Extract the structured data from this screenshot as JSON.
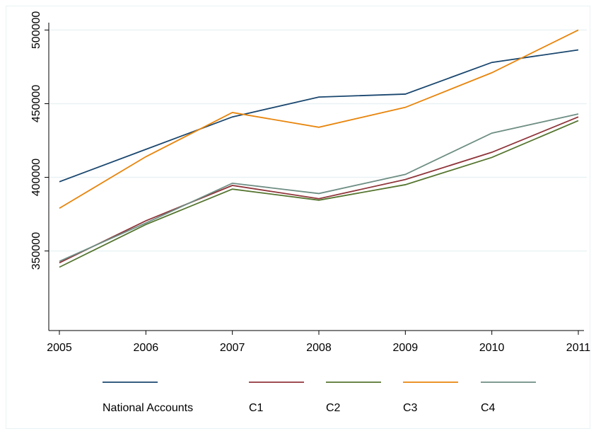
{
  "chart_data": {
    "type": "line",
    "categories": [
      2005,
      2006,
      2007,
      2008,
      2009,
      2010,
      2011
    ],
    "series": [
      {
        "name": "National Accounts",
        "color": "#1a476f",
        "values": [
          397000,
          419000,
          441000,
          454500,
          456500,
          478000,
          486500
        ]
      },
      {
        "name": "C1",
        "color": "#90353b",
        "values": [
          342000,
          370500,
          394500,
          385500,
          398500,
          417000,
          441000
        ]
      },
      {
        "name": "C2",
        "color": "#55752f",
        "values": [
          339000,
          368000,
          392000,
          384500,
          395000,
          413500,
          438500
        ]
      },
      {
        "name": "C3",
        "color": "#e8850c",
        "values": [
          379000,
          414000,
          444000,
          434000,
          447500,
          471000,
          500000
        ]
      },
      {
        "name": "C4",
        "color": "#6e8e84",
        "values": [
          343000,
          369000,
          396000,
          389000,
          402000,
          430000,
          443000
        ]
      }
    ],
    "ylim": [
      296000,
      505000
    ],
    "yticks": [
      350000,
      400000,
      450000,
      500000
    ],
    "grid": true
  }
}
